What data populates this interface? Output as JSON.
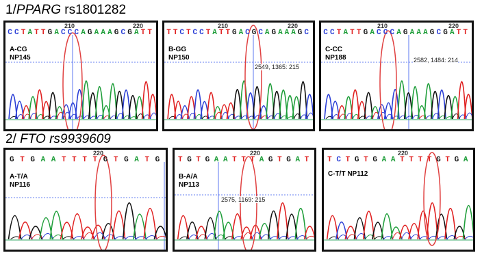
{
  "sections": [
    {
      "prefix": "1/",
      "gene": "PPARG",
      "snp": " rs1801282"
    },
    {
      "prefix": "2/",
      "gene": " FTO rs9939609",
      "snp": ""
    }
  ],
  "panels": [
    {
      "id": "p1",
      "seq": "CCTATTGACCCAGAAAGCGATT",
      "positions": [
        "210",
        "220"
      ],
      "label_line1": "A-CG",
      "label_line2": "NP145",
      "readout": ""
    },
    {
      "id": "p2",
      "seq": "TTCTCCTATTGACGCAGAAAGC",
      "positions": [
        "210",
        "220"
      ],
      "label_line1": "B-GG",
      "label_line2": "NP150",
      "readout": "2549, 1365: 215"
    },
    {
      "id": "p3",
      "seq": "CCTATTGACCCAGAAAGCGATT",
      "positions": [
        "210",
        "220"
      ],
      "label_line1": "C-CC",
      "label_line2": "NP188",
      "readout": "2582, 1484: 214"
    },
    {
      "id": "p4",
      "seq": "GTGAATTTTGTGATG",
      "positions": [
        "220"
      ],
      "label_line1": "A-T/A",
      "label_line2": "NP116",
      "readout": ""
    },
    {
      "id": "p5",
      "seq": "TGTGAATTTAGTGAT",
      "positions": [
        "220"
      ],
      "label_line1": "B-A/A",
      "label_line2": "NP113",
      "readout": "2575, 1169: 215"
    },
    {
      "id": "p6",
      "seq": "TCTGTGAATTTTGTGA",
      "positions": [
        "220"
      ],
      "label_line1": "C-T/T NP112",
      "label_line2": "",
      "readout": ""
    }
  ],
  "colors": {
    "A": "#1f9e3a",
    "C": "#2b3fd6",
    "G": "#111111",
    "T": "#e02020",
    "highlight": "#e04040",
    "guide": "#3355ee"
  }
}
